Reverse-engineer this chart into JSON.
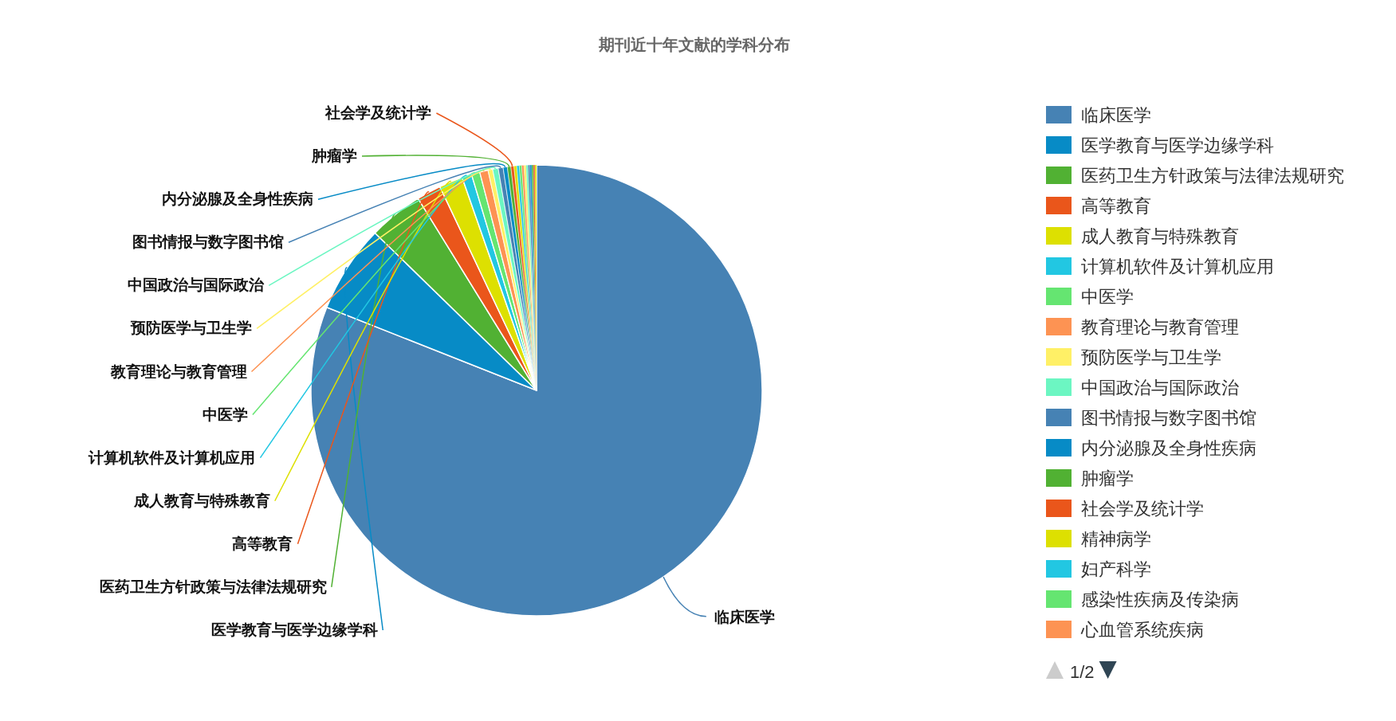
{
  "chart_data": {
    "type": "pie",
    "title": "期刊近十年文献的学科分布",
    "categories": [
      "临床医学",
      "医学教育与医学边缘学科",
      "医药卫生方针政策与法律法规研究",
      "高等教育",
      "成人教育与特殊教育",
      "计算机软件及计算机应用",
      "中医学",
      "教育理论与教育管理",
      "预防医学与卫生学",
      "中国政治与国际政治",
      "图书情报与数字图书馆",
      "内分泌腺及全身性疾病",
      "肿瘤学",
      "社会学及统计学",
      "精神病学",
      "妇产科学",
      "感染性疾病及传染病",
      "心血管系统疾病",
      null,
      null,
      null,
      null,
      null,
      null,
      null
    ],
    "values": [
      81.0,
      6.3,
      3.9,
      1.75,
      1.7,
      0.7,
      0.6,
      0.6,
      0.33,
      0.4,
      0.35,
      0.3,
      0.25,
      0.22,
      0.2,
      0.18,
      0.17,
      0.16,
      0.15,
      0.14,
      0.13,
      0.13,
      0.12,
      0.11,
      0.11
    ],
    "colors": [
      "#4682b4",
      "#078bc6",
      "#51b133",
      "#ea561b",
      "#dde001",
      "#22c7e2",
      "#65e571",
      "#fd9353",
      "#fff066",
      "#6cf6c2",
      "#4682b4",
      "#078bc6",
      "#51b133",
      "#ea561b",
      "#dde001",
      "#22c7e2",
      "#65e571",
      "#fd9353",
      "#fff066",
      "#6cf6c2",
      "#4682b4",
      "#078bc6",
      "#51b133",
      "#ea561b",
      "#dde001"
    ],
    "legend": "right",
    "annotations": [
      "1/2"
    ]
  }
}
